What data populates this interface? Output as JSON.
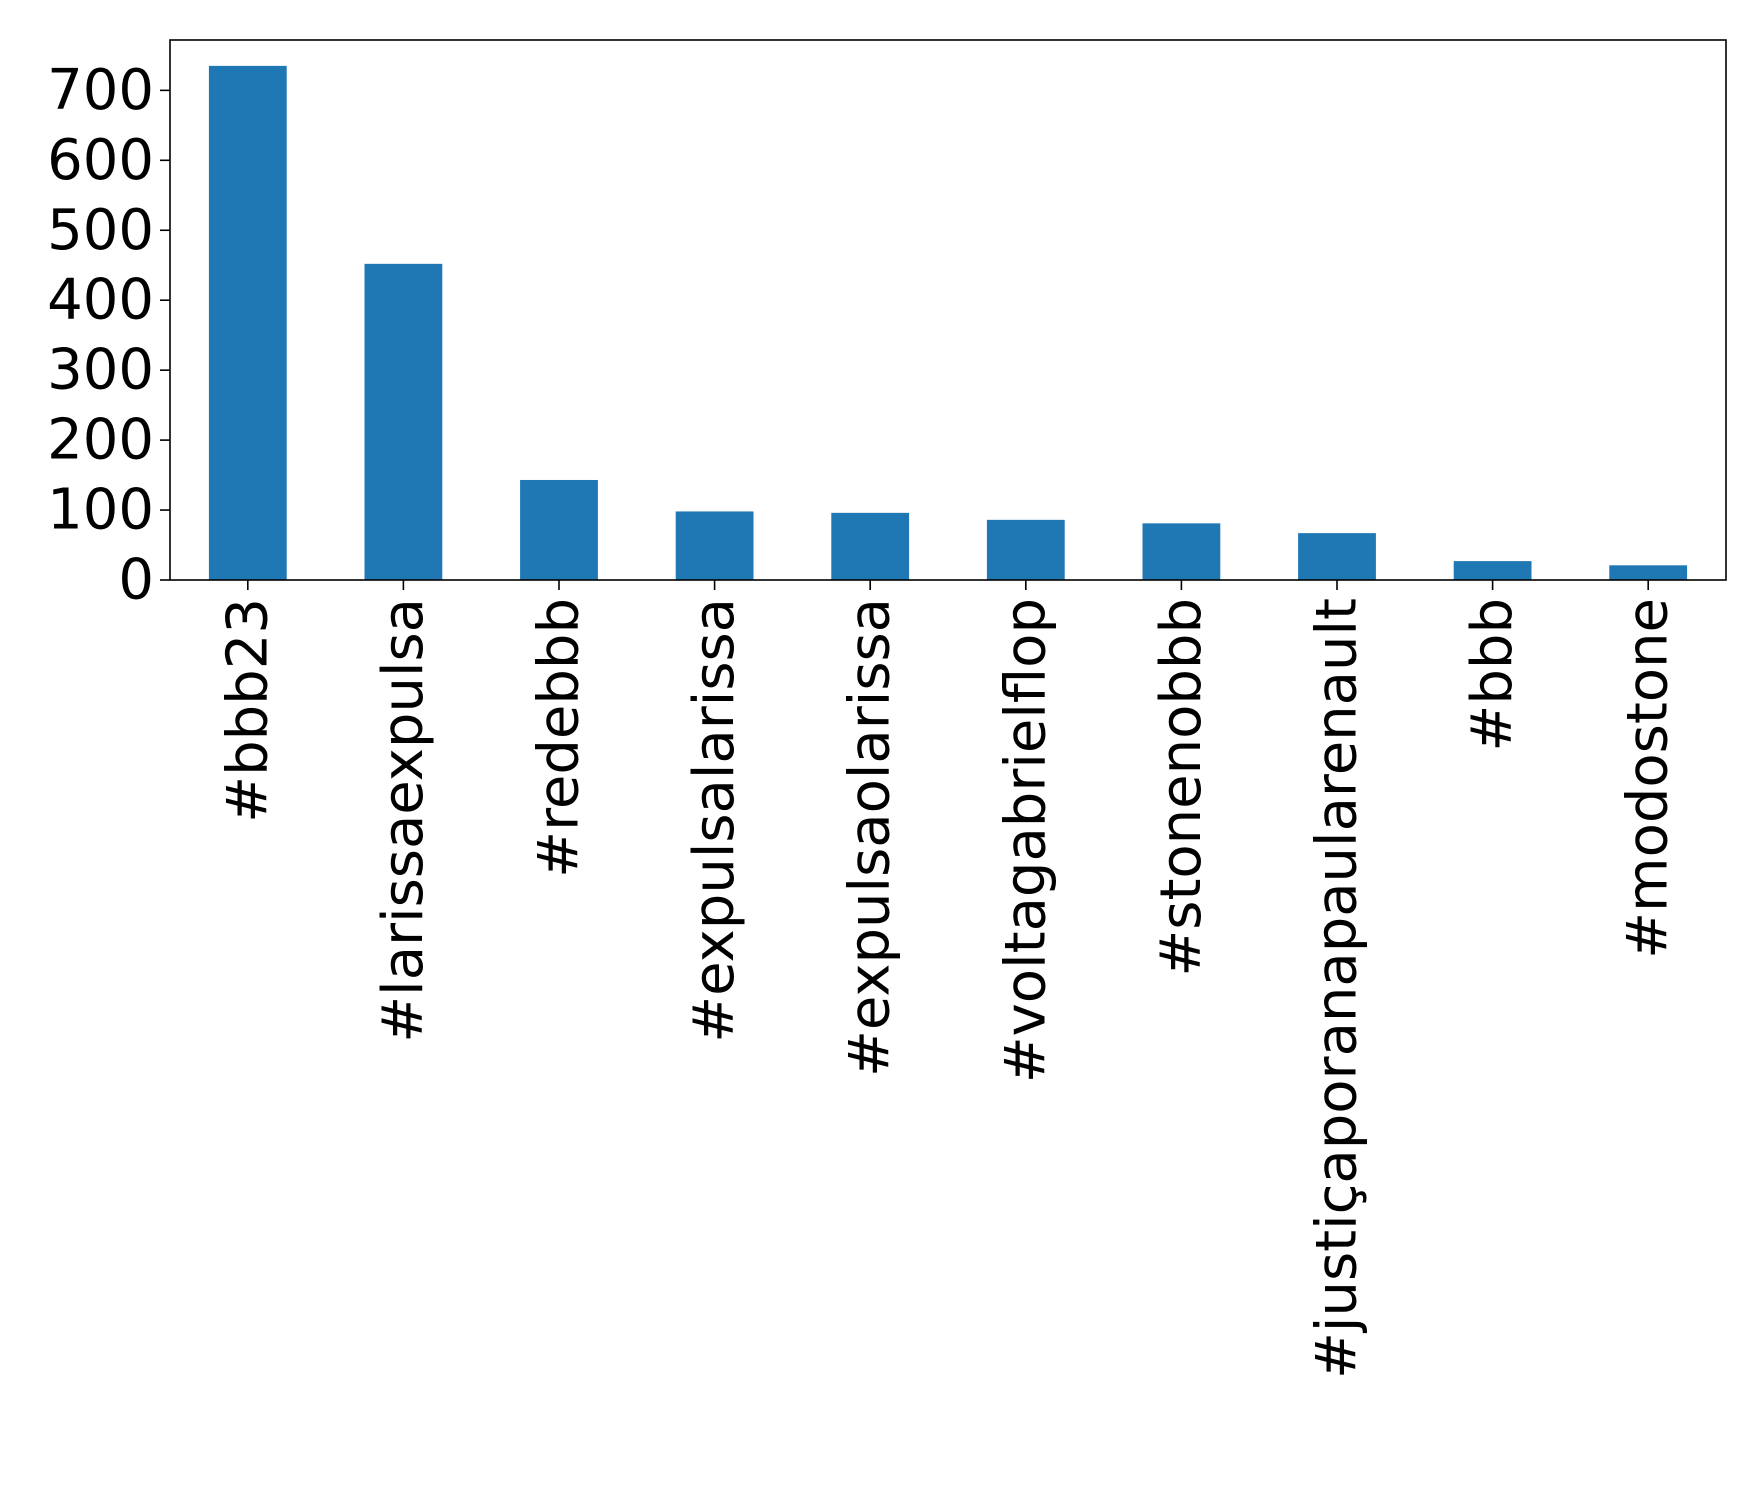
{
  "chart_data": {
    "type": "bar",
    "title": "",
    "xlabel": "",
    "ylabel": "",
    "categories": [
      "#bbb23",
      "#larissaexpulsa",
      "#redebbb",
      "#expulsalarissa",
      "#expulsaolarissa",
      "#voltagabrielflop",
      "#stonenobbb",
      "#justiçaporanapaularenault",
      "#bbb",
      "#modostone"
    ],
    "values": [
      735,
      452,
      143,
      98,
      96,
      86,
      81,
      67,
      27,
      21
    ],
    "ylim": [
      0,
      772
    ],
    "yticks": [
      0,
      100,
      200,
      300,
      400,
      500,
      600,
      700
    ],
    "ytick_labels": [
      "0",
      "100",
      "200",
      "300",
      "400",
      "500",
      "600",
      "700"
    ],
    "grid": false,
    "legend": "none",
    "colors": {
      "bar": "#1f77b4",
      "axis": "#000000",
      "background": "#ffffff"
    }
  }
}
